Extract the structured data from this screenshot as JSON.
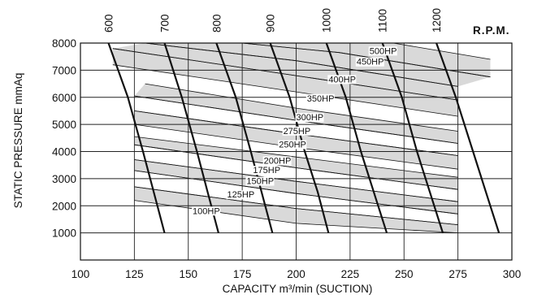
{
  "chart_data": {
    "type": "line",
    "title": "",
    "xlabel": "CAPACITY m³/min (SUCTION)",
    "ylabel": "STATIC PRESSURE mmAq",
    "xlim": [
      100,
      300
    ],
    "ylim": [
      0,
      8000
    ],
    "xticks": [
      "100",
      "125",
      "150",
      "175",
      "200",
      "225",
      "250",
      "275",
      "300"
    ],
    "xtick_values": [
      100,
      125,
      150,
      175,
      200,
      225,
      250,
      275,
      300
    ],
    "yticks": [
      "1000",
      "2000",
      "3000",
      "4000",
      "5000",
      "6000",
      "7000",
      "8000"
    ],
    "ytick_values": [
      1000,
      2000,
      3000,
      4000,
      5000,
      6000,
      7000,
      8000
    ],
    "grid": true,
    "secondary_axis_label": "R.P.M.",
    "rpm_curves": [
      {
        "label": "600",
        "points": [
          [
            113,
            8000
          ],
          [
            122,
            6000
          ],
          [
            129,
            4000
          ],
          [
            134,
            2500
          ],
          [
            139,
            1000
          ]
        ]
      },
      {
        "label": "700",
        "points": [
          [
            139,
            8000
          ],
          [
            147,
            6000
          ],
          [
            154,
            4000
          ],
          [
            159,
            2500
          ],
          [
            164,
            1000
          ]
        ]
      },
      {
        "label": "800",
        "points": [
          [
            163,
            8000
          ],
          [
            172,
            6000
          ],
          [
            179,
            4000
          ],
          [
            184,
            2500
          ],
          [
            189,
            1000
          ]
        ]
      },
      {
        "label": "900",
        "points": [
          [
            188,
            8000
          ],
          [
            197,
            6000
          ],
          [
            204,
            4000
          ],
          [
            210,
            2500
          ],
          [
            215,
            1000
          ]
        ]
      },
      {
        "label": "1000",
        "points": [
          [
            214,
            8000
          ],
          [
            223,
            6000
          ],
          [
            230,
            4000
          ],
          [
            236,
            2500
          ],
          [
            242,
            1000
          ]
        ]
      },
      {
        "label": "1100",
        "points": [
          [
            240,
            8000
          ],
          [
            249,
            6000
          ],
          [
            256,
            4000
          ],
          [
            262,
            2500
          ],
          [
            268,
            1000
          ]
        ]
      },
      {
        "label": "1200",
        "points": [
          [
            265,
            8000
          ],
          [
            274,
            6000
          ],
          [
            282,
            4000
          ],
          [
            288,
            2500
          ],
          [
            294,
            1000
          ]
        ]
      }
    ],
    "hp_bands": [
      {
        "label": "100HP",
        "upper": [
          [
            125,
            2700
          ],
          [
            200,
            1900
          ],
          [
            275,
            1300
          ]
        ],
        "lower": [
          [
            125,
            2200
          ],
          [
            200,
            1350
          ],
          [
            275,
            1000
          ]
        ]
      },
      {
        "label": "125HP",
        "upper": [
          [
            125,
            3300
          ],
          [
            200,
            2450
          ],
          [
            275,
            1700
          ]
        ],
        "lower": [
          [
            125,
            2700
          ],
          [
            200,
            1900
          ],
          [
            275,
            1300
          ]
        ]
      },
      {
        "label": "150HP",
        "upper": [
          [
            125,
            3700
          ],
          [
            200,
            2900
          ],
          [
            275,
            2150
          ]
        ],
        "lower": [
          [
            125,
            3300
          ],
          [
            200,
            2450
          ],
          [
            275,
            1700
          ]
        ]
      },
      {
        "label": "175HP",
        "upper": [
          [
            125,
            4250
          ],
          [
            200,
            3400
          ],
          [
            275,
            2600
          ]
        ],
        "lower": [
          [
            125,
            3700
          ],
          [
            200,
            2900
          ],
          [
            275,
            2150
          ]
        ]
      },
      {
        "label": "200HP",
        "upper": [
          [
            125,
            4550
          ],
          [
            200,
            3800
          ],
          [
            275,
            3050
          ]
        ],
        "lower": [
          [
            125,
            4250
          ],
          [
            200,
            3400
          ],
          [
            275,
            2600
          ]
        ]
      },
      {
        "label": "250HP",
        "upper": [
          [
            125,
            5500
          ],
          [
            200,
            4650
          ],
          [
            275,
            3850
          ]
        ],
        "lower": [
          [
            125,
            5000
          ],
          [
            200,
            4150
          ],
          [
            275,
            3350
          ]
        ]
      },
      {
        "label": "275HP",
        "upper": [
          [
            125,
            6050
          ],
          [
            200,
            5150
          ],
          [
            275,
            4300
          ]
        ],
        "lower": [
          [
            125,
            5500
          ],
          [
            200,
            4650
          ],
          [
            275,
            3850
          ]
        ]
      },
      {
        "label": "300HP",
        "upper": [
          [
            130,
            6500
          ],
          [
            200,
            5600
          ],
          [
            275,
            4750
          ]
        ],
        "lower": [
          [
            125,
            6050
          ],
          [
            200,
            5150
          ],
          [
            275,
            4300
          ]
        ]
      },
      {
        "label": "350HP",
        "upper": [
          [
            115,
            7800
          ],
          [
            200,
            6800
          ],
          [
            275,
            5900
          ]
        ],
        "lower": [
          [
            115,
            7200
          ],
          [
            200,
            6200
          ],
          [
            275,
            5300
          ]
        ]
      },
      {
        "label": "400HP",
        "upper": [
          [
            130,
            8000
          ],
          [
            200,
            7350
          ],
          [
            275,
            6400
          ]
        ],
        "lower": [
          [
            115,
            7800
          ],
          [
            200,
            6800
          ],
          [
            275,
            5900
          ]
        ]
      },
      {
        "label": "450HP",
        "upper": [
          [
            175,
            8000
          ],
          [
            220,
            7650
          ],
          [
            290,
            6750
          ]
        ],
        "lower": [
          [
            130,
            8000
          ],
          [
            200,
            7350
          ],
          [
            275,
            6400
          ]
        ]
      },
      {
        "label": "500HP",
        "upper": [
          [
            245,
            8000
          ],
          [
            290,
            7400
          ]
        ],
        "lower": [
          [
            175,
            8000
          ],
          [
            220,
            7650
          ],
          [
            290,
            6750
          ]
        ]
      }
    ],
    "hp_shaded": [
      "100HP",
      "150HP",
      "200HP",
      "250HP",
      "300HP",
      "350HP",
      "400HP",
      "450HP",
      "500HP"
    ],
    "hp_labels": [
      {
        "text": "100HP",
        "x": 152,
        "y": 1700
      },
      {
        "text": "125HP",
        "x": 168,
        "y": 2300
      },
      {
        "text": "150HP",
        "x": 177,
        "y": 2800
      },
      {
        "text": "175HP",
        "x": 180,
        "y": 3200
      },
      {
        "text": "200HP",
        "x": 185,
        "y": 3550
      },
      {
        "text": "250HP",
        "x": 192,
        "y": 4150
      },
      {
        "text": "275HP",
        "x": 194,
        "y": 4650
      },
      {
        "text": "300HP",
        "x": 200,
        "y": 5150
      },
      {
        "text": "350HP",
        "x": 205,
        "y": 5850
      },
      {
        "text": "400HP",
        "x": 215,
        "y": 6550
      },
      {
        "text": "450HP",
        "x": 228,
        "y": 7200
      },
      {
        "text": "500HP",
        "x": 234,
        "y": 7600
      }
    ],
    "colors": {
      "band_fill": "#d9d9d9",
      "line": "#111111",
      "grid": "#222222"
    }
  }
}
